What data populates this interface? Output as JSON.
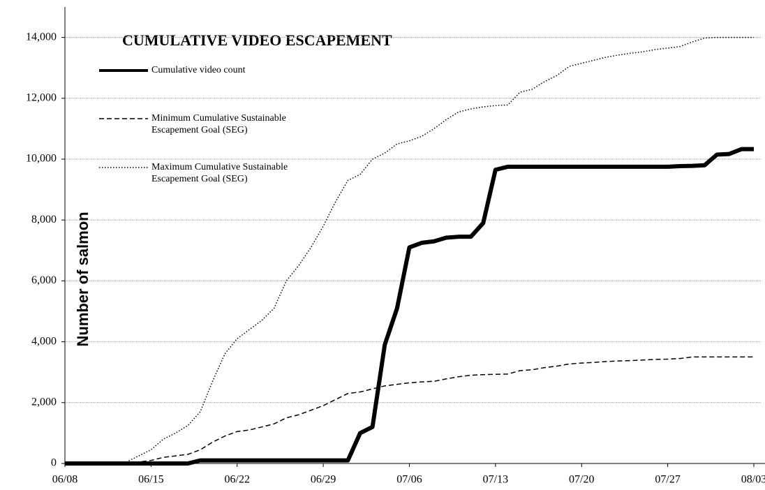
{
  "chart_data": {
    "type": "line",
    "title": "CUMULATIVE VIDEO ESCAPEMENT",
    "y_label": "Number of salmon",
    "categories": [
      "06/08",
      null,
      null,
      null,
      null,
      null,
      null,
      "06/15",
      null,
      null,
      null,
      null,
      null,
      null,
      "06/22",
      null,
      null,
      null,
      null,
      null,
      null,
      "06/29",
      null,
      null,
      null,
      null,
      null,
      null,
      "07/06",
      null,
      null,
      null,
      null,
      null,
      null,
      "07/13",
      null,
      null,
      null,
      null,
      null,
      null,
      "07/20",
      null,
      null,
      null,
      null,
      null,
      null,
      "07/27",
      null,
      null,
      null,
      null,
      null,
      null,
      "08/03"
    ],
    "series": [
      {
        "name": "Cumulative video count",
        "color": "#000000",
        "dash": "solid",
        "width": 6,
        "values": [
          0,
          0,
          0,
          0,
          0,
          0,
          0,
          0,
          0,
          0,
          0,
          100,
          100,
          100,
          100,
          100,
          100,
          100,
          100,
          100,
          100,
          100,
          100,
          100,
          1000,
          1200,
          3900,
          5100,
          7100,
          7250,
          7300,
          7420,
          7450,
          7450,
          7900,
          9650,
          9750,
          9750,
          9750,
          9750,
          9750,
          9750,
          9750,
          9750,
          9750,
          9750,
          9750,
          9750,
          9750,
          9750,
          9770,
          9780,
          9800,
          10150,
          10170,
          10330,
          10330
        ]
      },
      {
        "name": "Minimum Cumulative Sustainable Escapement Goal (SEG)",
        "color": "#000000",
        "dash": "dashed",
        "width": 1.5,
        "values": [
          0,
          0,
          0,
          0,
          0,
          10,
          50,
          100,
          200,
          250,
          300,
          450,
          700,
          900,
          1050,
          1100,
          1200,
          1300,
          1500,
          1600,
          1750,
          1900,
          2100,
          2300,
          2350,
          2450,
          2550,
          2600,
          2650,
          2680,
          2700,
          2780,
          2850,
          2900,
          2920,
          2930,
          2940,
          3050,
          3080,
          3150,
          3200,
          3270,
          3300,
          3320,
          3350,
          3370,
          3380,
          3400,
          3420,
          3430,
          3450,
          3500,
          3500,
          3500,
          3500,
          3500,
          3500
        ]
      },
      {
        "name": "Maximum Cumulative Sustainable Escapement Goal (SEG)",
        "color": "#000000",
        "dash": "dotted",
        "width": 1.5,
        "values": [
          0,
          0,
          0,
          0,
          0,
          50,
          250,
          450,
          800,
          1000,
          1250,
          1700,
          2700,
          3600,
          4100,
          4400,
          4700,
          5100,
          6000,
          6500,
          7100,
          7800,
          8600,
          9300,
          9500,
          10000,
          10200,
          10500,
          10600,
          10750,
          11000,
          11300,
          11550,
          11650,
          11720,
          11760,
          11780,
          12200,
          12300,
          12550,
          12750,
          13050,
          13150,
          13250,
          13350,
          13420,
          13480,
          13530,
          13600,
          13650,
          13700,
          13850,
          13980,
          14000,
          14000,
          14000,
          14000
        ]
      }
    ],
    "ylim": [
      0,
      15000
    ],
    "yticks": [
      0,
      {
        "value": 2000,
        "label": "2,000"
      },
      {
        "value": 4000,
        "label": "4,000"
      },
      {
        "value": 6000,
        "label": "6,000"
      },
      {
        "value": 8000,
        "label": "8,000"
      },
      {
        "value": 10000,
        "label": "10,000"
      },
      {
        "value": 12000,
        "label": "12,000"
      },
      {
        "value": 14000,
        "label": "14,000"
      }
    ],
    "grid": true
  }
}
